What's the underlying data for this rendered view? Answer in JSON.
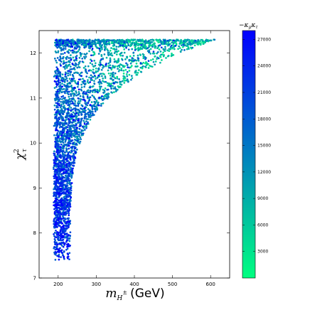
{
  "chart_data": {
    "type": "scatter",
    "title": "",
    "xlabel": {
      "math": "m",
      "sub": "H",
      "sup": "±",
      "unit": "(GeV)"
    },
    "ylabel": {
      "math": "χ",
      "sup": "2",
      "sub": "τ"
    },
    "xlim": [
      150,
      650
    ],
    "ylim": [
      7,
      12.5
    ],
    "x_ticks": [
      200,
      300,
      400,
      500,
      600
    ],
    "y_ticks": [
      7,
      8,
      9,
      10,
      11,
      12
    ],
    "grid": false,
    "colorbar": {
      "label": "−κμκτ",
      "label_parts": {
        "minus": "−",
        "k1": "κ",
        "s1": "μ",
        "k2": "κ",
        "s2": "τ"
      },
      "range": [
        0,
        28000
      ],
      "ticks": [
        3000,
        6000,
        9000,
        12000,
        15000,
        18000,
        21000,
        24000,
        27000
      ],
      "color_low": "#00ff80",
      "color_high": "#0000ff"
    },
    "series": [
      {
        "description_of_distribution": "dense points filling triangular region",
        "x_range": [
          190,
          620
        ],
        "y_range": [
          7.4,
          12.3
        ],
        "point_count": 3500
      }
    ]
  }
}
